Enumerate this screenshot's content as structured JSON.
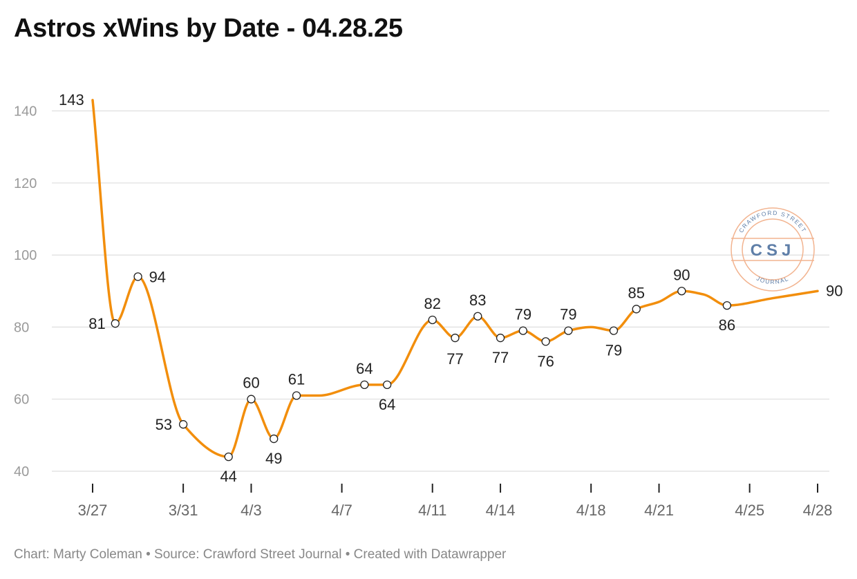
{
  "title": "Astros xWins by Date - 04.28.25",
  "footer": "Chart: Marty Coleman • Source: Crawford Street Journal • Created with Datawrapper",
  "logo": {
    "top_text": "CRAWFORD STREET",
    "main_text": "CSJ",
    "bottom_text": "JOURNAL"
  },
  "colors": {
    "line": "#f28e0c",
    "marker_stroke": "#222222",
    "grid": "#dedede",
    "logo_ring": "#f2b38f",
    "logo_text": "#5f7fa8"
  },
  "chart_data": {
    "type": "line",
    "title": "Astros xWins by Date - 04.28.25",
    "xlabel": "",
    "ylabel": "",
    "ylim": [
      40,
      143
    ],
    "yticks": [
      40,
      60,
      80,
      100,
      120,
      140
    ],
    "x_tick_labels": [
      "3/27",
      "3/31",
      "4/3",
      "4/7",
      "4/11",
      "4/14",
      "4/18",
      "4/21",
      "4/25",
      "4/28"
    ],
    "grid": true,
    "series": [
      {
        "x": [
          "3/27",
          "3/28",
          "3/29",
          "3/31",
          "4/2",
          "4/3",
          "4/4",
          "4/5",
          "4/6",
          "4/8",
          "4/9",
          "4/11",
          "4/12",
          "4/13",
          "4/14",
          "4/15",
          "4/16",
          "4/17",
          "4/18",
          "4/19",
          "4/20",
          "4/21",
          "4/22",
          "4/23",
          "4/24",
          "4/26",
          "4/27",
          "4/28"
        ],
        "values": [
          143,
          81,
          94,
          53,
          44,
          60,
          49,
          61,
          61,
          64,
          64,
          82,
          77,
          83,
          77,
          79,
          76,
          79,
          80,
          79,
          85,
          87,
          90,
          89,
          86,
          88,
          89,
          90
        ]
      }
    ],
    "data_labels": [
      {
        "x": "3/27",
        "text": "143"
      },
      {
        "x": "3/28",
        "text": "81"
      },
      {
        "x": "3/29",
        "text": "94"
      },
      {
        "x": "3/31",
        "text": "53"
      },
      {
        "x": "4/2",
        "text": "44"
      },
      {
        "x": "4/3",
        "text": "60"
      },
      {
        "x": "4/4",
        "text": "49"
      },
      {
        "x": "4/5",
        "text": "61"
      },
      {
        "x": "4/8",
        "text": "64"
      },
      {
        "x": "4/9",
        "text": "64"
      },
      {
        "x": "4/11",
        "text": "82"
      },
      {
        "x": "4/12",
        "text": "77"
      },
      {
        "x": "4/13",
        "text": "83"
      },
      {
        "x": "4/14",
        "text": "77"
      },
      {
        "x": "4/15",
        "text": "79"
      },
      {
        "x": "4/16",
        "text": "76"
      },
      {
        "x": "4/17",
        "text": "79"
      },
      {
        "x": "4/19",
        "text": "79"
      },
      {
        "x": "4/20",
        "text": "85"
      },
      {
        "x": "4/22",
        "text": "90"
      },
      {
        "x": "4/24",
        "text": "86"
      },
      {
        "x": "4/28",
        "text": "90"
      }
    ],
    "markers": [
      "3/28",
      "3/29",
      "3/31",
      "4/2",
      "4/3",
      "4/4",
      "4/5",
      "4/8",
      "4/9",
      "4/11",
      "4/12",
      "4/13",
      "4/14",
      "4/15",
      "4/16",
      "4/17",
      "4/19",
      "4/20",
      "4/22",
      "4/24"
    ]
  }
}
